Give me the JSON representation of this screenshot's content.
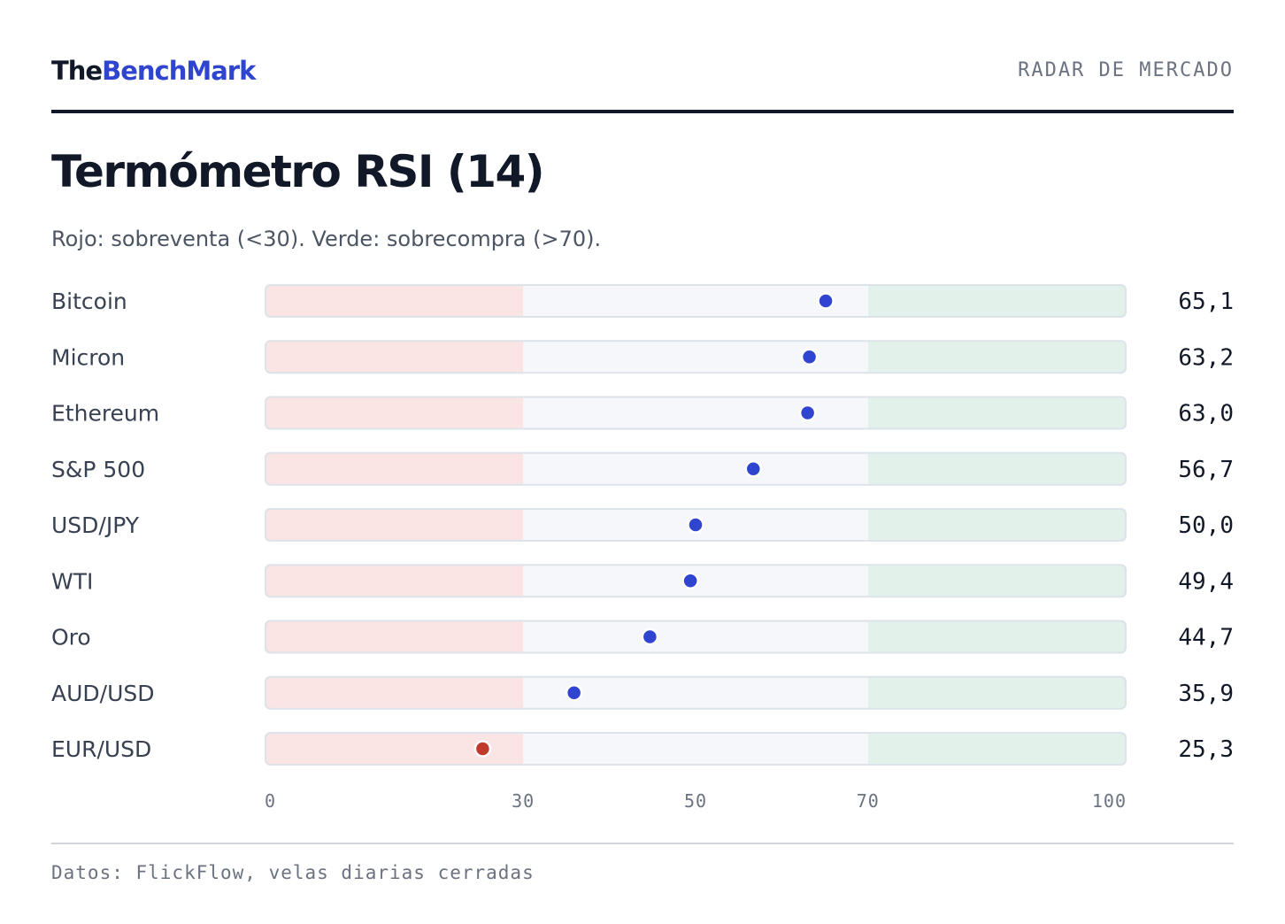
{
  "brand": {
    "part1": "The",
    "part2": "BenchMark"
  },
  "section_label": "RADAR DE MERCADO",
  "title": "Termómetro RSI (14)",
  "subtitle": "Rojo: sobreventa (<30). Verde: sobrecompra (>70).",
  "source": "Datos: FlickFlow, velas diarias cerradas",
  "chart_data": {
    "type": "scatter",
    "categories": [
      "Bitcoin",
      "Micron",
      "Ethereum",
      "S&P 500",
      "USD/JPY",
      "WTI",
      "Oro",
      "AUD/USD",
      "EUR/USD"
    ],
    "values": [
      65.1,
      63.2,
      63.0,
      56.7,
      50.0,
      49.4,
      44.7,
      35.9,
      25.3
    ],
    "value_labels": [
      "65,1",
      "63,2",
      "63,0",
      "56,7",
      "50,0",
      "49,4",
      "44,7",
      "35,9",
      "25,3"
    ],
    "xlim": [
      0,
      100
    ],
    "ticks": [
      {
        "value": 0,
        "label": "0"
      },
      {
        "value": 30,
        "label": "30"
      },
      {
        "value": 50,
        "label": "50"
      },
      {
        "value": 70,
        "label": "70"
      },
      {
        "value": 100,
        "label": "100"
      }
    ],
    "zones": [
      {
        "name": "oversold",
        "from": 0,
        "to": 30,
        "color": "#fbe5e4"
      },
      {
        "name": "neutral",
        "from": 30,
        "to": 70,
        "color": "#f5f7fb"
      },
      {
        "name": "overbought",
        "from": 70,
        "to": 100,
        "color": "#e2f2ea"
      }
    ],
    "oversold_threshold": 30,
    "overbought_threshold": 70,
    "colors": {
      "normal_dot": "#2f45d0",
      "oversold_dot": "#c0392b",
      "overbought_dot": "#1e8a4a",
      "track_border": "#dde3ea",
      "label_text": "#374151",
      "value_text": "#111827",
      "tick_text": "#6b7280"
    }
  }
}
